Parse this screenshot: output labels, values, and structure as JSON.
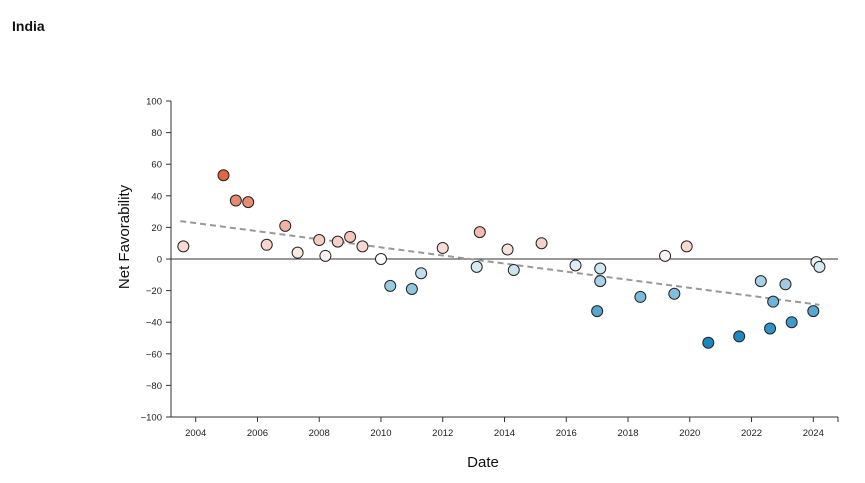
{
  "page": {
    "title": "India"
  },
  "chart_data": {
    "type": "scatter",
    "title": "India",
    "xlabel": "Date",
    "ylabel": "Net Favorability",
    "xlim": [
      2003.2,
      2024.8
    ],
    "ylim": [
      -100,
      100
    ],
    "x_ticks": [
      2004,
      2006,
      2008,
      2010,
      2012,
      2014,
      2016,
      2018,
      2020,
      2022,
      2024
    ],
    "y_ticks": [
      100,
      80,
      60,
      40,
      20,
      0,
      -20,
      -40,
      -60,
      -80,
      -100
    ],
    "zero_line": true,
    "grid": false,
    "legend": "none",
    "trendline": {
      "style": "dashed",
      "color": "#999999",
      "x": [
        2003.5,
        2024.2
      ],
      "y": [
        24,
        -29
      ]
    },
    "color_scale": {
      "positive_max": "#e0603f",
      "neutral": "#ffffff",
      "negative_max": "#1a88bf"
    },
    "points": [
      {
        "x": 2003.6,
        "y": 8
      },
      {
        "x": 2004.9,
        "y": 53
      },
      {
        "x": 2005.3,
        "y": 37
      },
      {
        "x": 2005.7,
        "y": 36
      },
      {
        "x": 2006.3,
        "y": 9
      },
      {
        "x": 2006.9,
        "y": 21
      },
      {
        "x": 2007.3,
        "y": 4
      },
      {
        "x": 2008.0,
        "y": 12
      },
      {
        "x": 2008.2,
        "y": 2
      },
      {
        "x": 2008.6,
        "y": 11
      },
      {
        "x": 2009.0,
        "y": 14
      },
      {
        "x": 2009.4,
        "y": 8
      },
      {
        "x": 2010.0,
        "y": 0
      },
      {
        "x": 2010.3,
        "y": -17
      },
      {
        "x": 2011.0,
        "y": -19
      },
      {
        "x": 2011.3,
        "y": -9
      },
      {
        "x": 2012.0,
        "y": 7
      },
      {
        "x": 2013.1,
        "y": -5
      },
      {
        "x": 2013.2,
        "y": 17
      },
      {
        "x": 2014.1,
        "y": 6
      },
      {
        "x": 2014.3,
        "y": -7
      },
      {
        "x": 2015.2,
        "y": 10
      },
      {
        "x": 2016.3,
        "y": -4
      },
      {
        "x": 2017.0,
        "y": -33
      },
      {
        "x": 2017.1,
        "y": -14
      },
      {
        "x": 2017.1,
        "y": -6
      },
      {
        "x": 2018.4,
        "y": -24
      },
      {
        "x": 2019.2,
        "y": 2
      },
      {
        "x": 2019.5,
        "y": -22
      },
      {
        "x": 2019.9,
        "y": 8
      },
      {
        "x": 2020.6,
        "y": -53
      },
      {
        "x": 2021.6,
        "y": -49
      },
      {
        "x": 2022.3,
        "y": -14
      },
      {
        "x": 2022.6,
        "y": -44
      },
      {
        "x": 2022.7,
        "y": -27
      },
      {
        "x": 2023.1,
        "y": -16
      },
      {
        "x": 2023.3,
        "y": -40
      },
      {
        "x": 2024.0,
        "y": -33
      },
      {
        "x": 2024.1,
        "y": -2
      },
      {
        "x": 2024.2,
        "y": -5
      }
    ]
  }
}
